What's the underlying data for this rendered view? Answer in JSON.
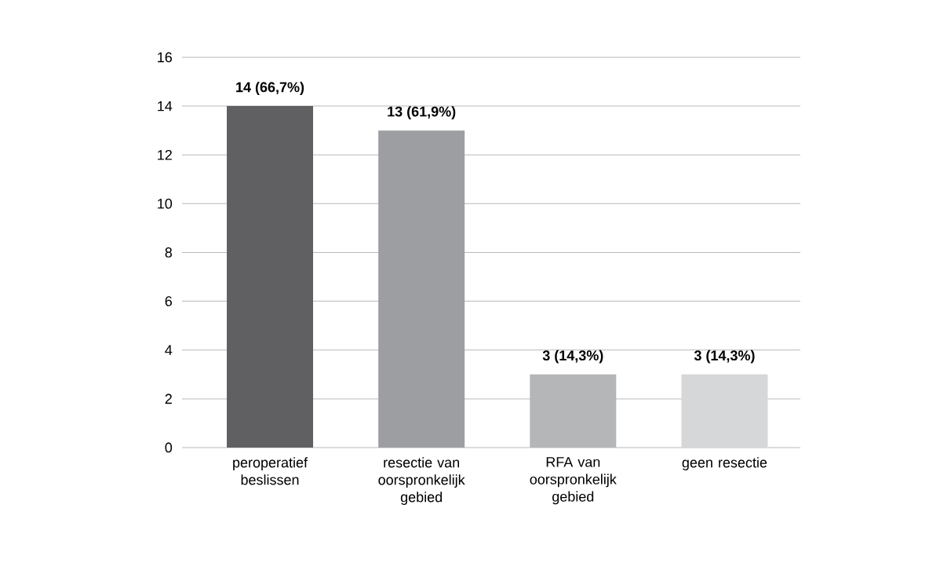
{
  "chart_data": {
    "type": "bar",
    "categories": [
      "peroperatief beslissen",
      "resectie van oorspronkelijk gebied",
      "RFA van oorspronkelijk gebied",
      "geen resectie"
    ],
    "values": [
      14,
      13,
      3,
      3
    ],
    "colors": [
      "#606063",
      "#9d9ea1",
      "#b5b6b8",
      "#d6d7d9"
    ],
    "value_labels": [
      "14 (66,7%)",
      "13 (61,9%)",
      "3 (14,3%)",
      "3 (14,3%)"
    ],
    "ylim": [
      0,
      16
    ],
    "yticks": [
      0,
      2,
      4,
      6,
      8,
      10,
      12,
      14,
      16
    ],
    "grid": "y"
  }
}
